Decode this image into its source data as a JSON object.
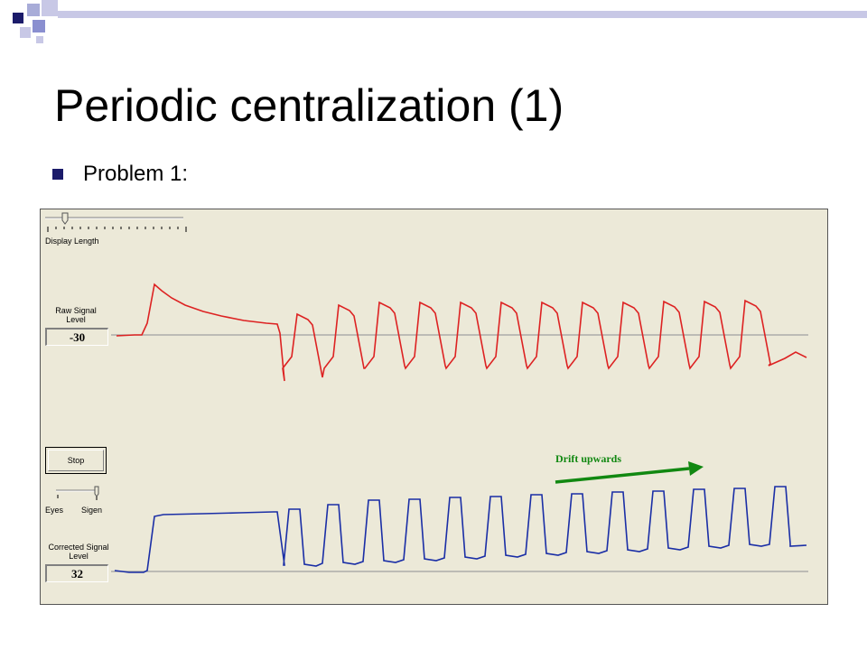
{
  "slide": {
    "title": "Periodic centralization (1)",
    "bullet": "Problem 1:"
  },
  "colors": {
    "accent_dark": "#1b1b6a",
    "accent_light": "#8a8fd0",
    "raw_signal": "#dd2222",
    "corrected_signal": "#1a2ea6",
    "drift_arrow": "#118811",
    "panel_bg": "#ece9d8"
  },
  "app": {
    "display_length_label": "Display Length",
    "raw_signal": {
      "label_line1": "Raw Signal",
      "label_line2": "Level",
      "value": "-30"
    },
    "stop_button_label": "Stop",
    "slider2": {
      "left_label": "Eyes",
      "right_label": "Sigen"
    },
    "corrected_signal": {
      "label_line1": "Corrected Signal",
      "label_line2": "Level",
      "value": "32"
    },
    "annotation": {
      "text": "Drift upwards",
      "arrow_icon": "arrow-right-icon"
    }
  }
}
